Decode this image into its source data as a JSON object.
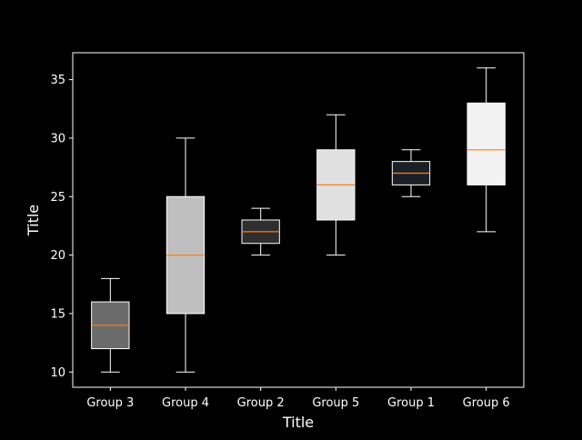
{
  "chart_data": {
    "type": "box",
    "title": "",
    "xlabel": "Title",
    "ylabel": "Title",
    "ylim": [
      8.7,
      37.3
    ],
    "yticks": [
      10,
      15,
      20,
      25,
      30,
      35
    ],
    "categories": [
      "Group 3",
      "Group 4",
      "Group 2",
      "Group 5",
      "Group 1",
      "Group 6"
    ],
    "boxes": [
      {
        "name": "Group 3",
        "whisker_low": 10,
        "q1": 12,
        "median": 14,
        "q3": 16,
        "whisker_high": 18,
        "color": "#6b6b6b"
      },
      {
        "name": "Group 4",
        "whisker_low": 10,
        "q1": 15,
        "median": 20,
        "q3": 25,
        "whisker_high": 30,
        "color": "#bfbfbf"
      },
      {
        "name": "Group 2",
        "whisker_low": 20,
        "q1": 21,
        "median": 22,
        "q3": 23,
        "whisker_high": 24,
        "color": "#2e2e2e"
      },
      {
        "name": "Group 5",
        "whisker_low": 20,
        "q1": 23,
        "median": 26,
        "q3": 29,
        "whisker_high": 32,
        "color": "#e0e0e0"
      },
      {
        "name": "Group 1",
        "whisker_low": 25,
        "q1": 26,
        "median": 27,
        "q3": 28,
        "whisker_high": 29,
        "color": "#1c1f26"
      },
      {
        "name": "Group 6",
        "whisker_low": 22,
        "q1": 26,
        "median": 29,
        "q3": 33,
        "whisker_high": 36,
        "color": "#f2f2f2"
      }
    ],
    "median_color": "#ff7f0e",
    "line_color": "#ffffff",
    "background_color": "#000000",
    "grid": false
  }
}
